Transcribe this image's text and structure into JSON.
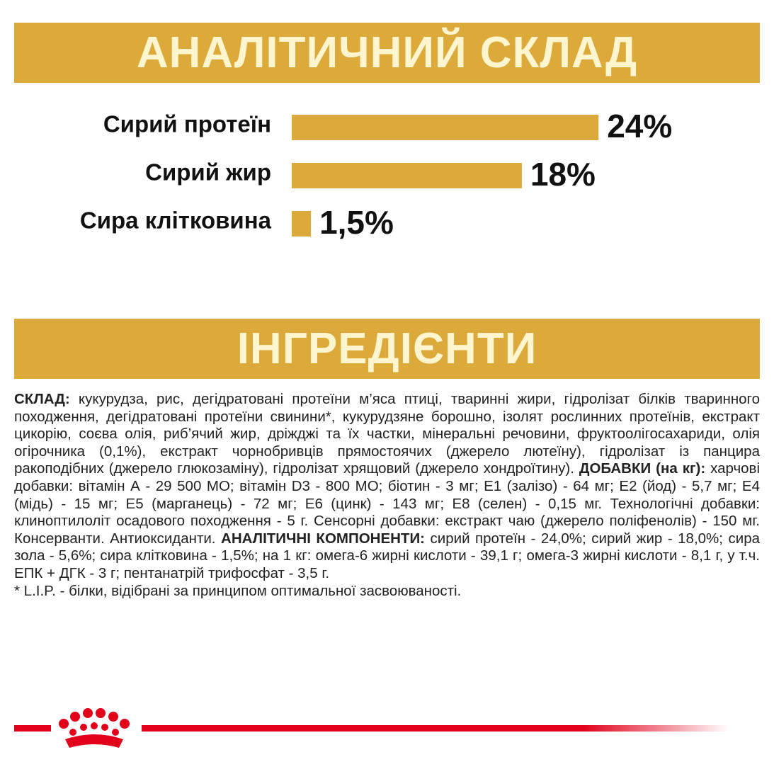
{
  "analysis_title": "АНАЛІТИЧНИЙ СКЛАД",
  "chart_data": {
    "type": "bar",
    "categories": [
      "Сирий протеїн",
      "Сирий жир",
      "Сира клітковина"
    ],
    "values": [
      24,
      18,
      1.5
    ],
    "value_labels": [
      "24%",
      "18%",
      "1,5%"
    ],
    "color": "#dcaa3a"
  },
  "ingredients_title": "ІНГРЕДІЄНТИ",
  "ingredients": [
    {
      "label": "СКЛАД:",
      "text": "кукурудза, рис, дегідратовані протеїни м’яса птиці, тваринні жири, гідролізат білків тваринного походження, дегідратовані протеїни свинини*, кукурудзяне борошно, ізолят рослинних протеїнів, екстракт цикорію, соєва олія, риб’ячий жир, дріжджі та їх частки, мінеральні речовини, фруктоолігосахариди, олія огірочника (0,1%), екстракт чорнобривців прямостоячих (джерело лютеїну), гідролізат із панцира ракоподібних (джерело глюкозаміну), гідролізат хрящовий (джерело хондроїтину)."
    },
    {
      "label": "ДОБАВКИ (на кг):",
      "text": "харчові добавки: вітамін А - 29 500 МО; вітамін D3 - 800 МО; біотин - 3 мг; Е1 (залізо) - 64 мг; Е2 (йод) - 5,7 мг; Е4 (мідь) - 15 мг; Е5 (марганець) - 72 мг; Е6 (цинк) - 143 мг; Е8 (селен) - 0,15 мг. Технологічні добавки: клиноптилоліт осадового походження - 5 г. Сенсорні добавки: екстракт чаю (джерело поліфенолів) - 150 мг. Консерванти. Антиоксиданти."
    },
    {
      "label": "АНАЛІТИЧНІ КОМПОНЕНТИ:",
      "text": "сирий протеїн - 24,0%; сирий жир - 18,0%; сира зола - 5,6%; сира клітковина - 1,5%; на 1 кг: омега-6 жирні кислоти - 39,1 г; омега-3 жирні кислоти - 8,1 г, у т.ч. ЕПК + ДГК - 3 г; пентанатрій трифосфат - 3,5 г."
    }
  ],
  "footnote": "* L.I.P. - білки, відібрані за принципом оптимальної засвоюваності."
}
